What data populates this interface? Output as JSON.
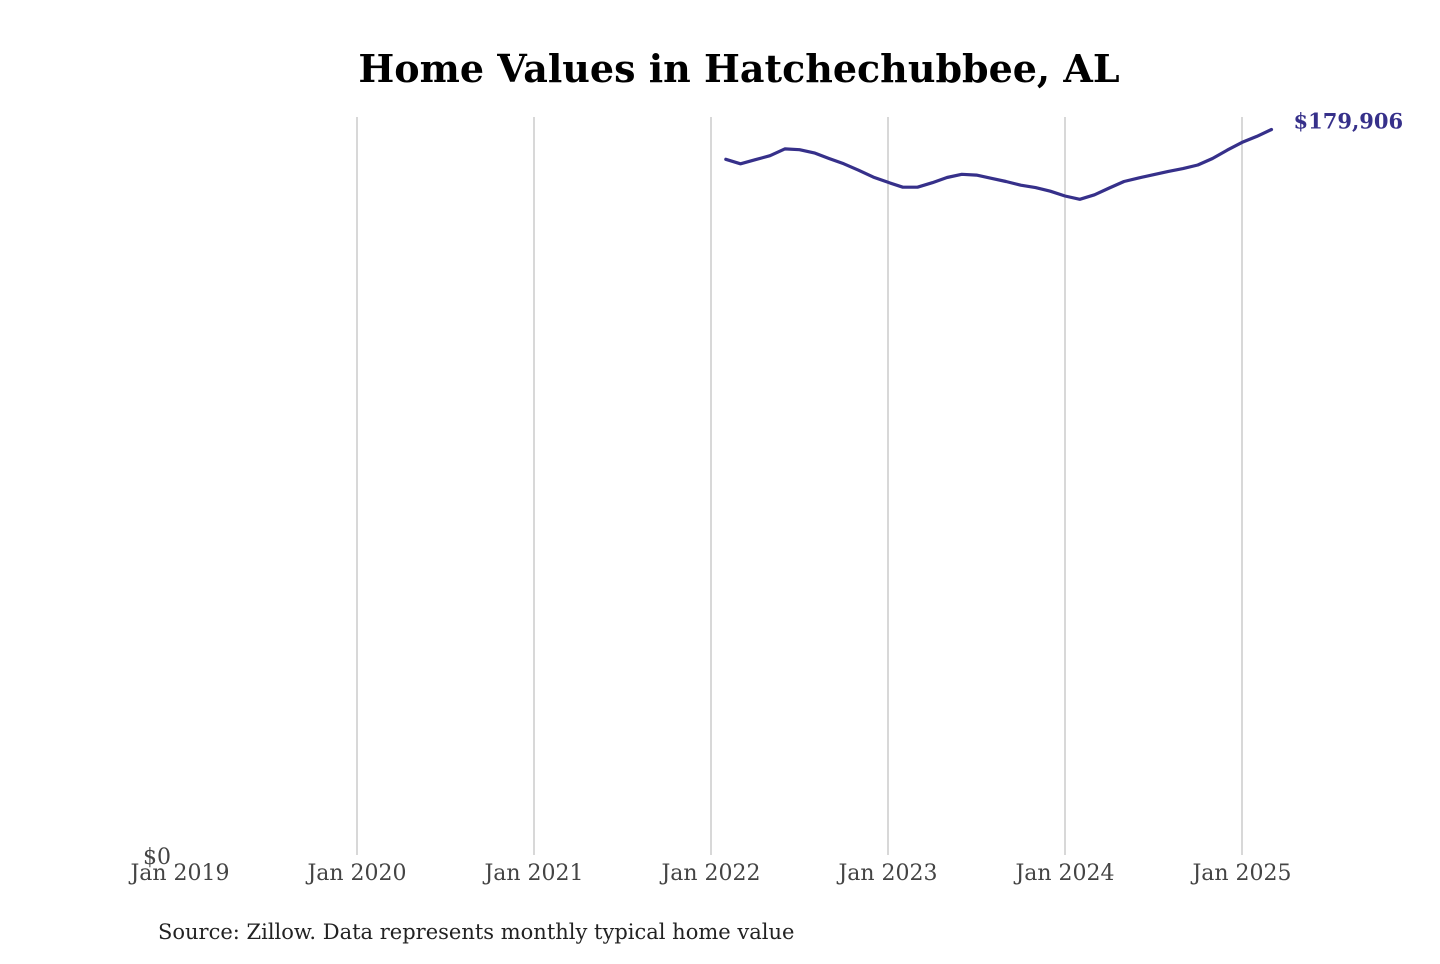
{
  "chart_data": {
    "type": "line",
    "title": "Home Values in Hatchechubbee, AL",
    "xlabel": "",
    "ylabel": "",
    "x_ticks": [
      "Jan 2019",
      "Jan 2020",
      "Jan 2021",
      "Jan 2022",
      "Jan 2023",
      "Jan 2024",
      "Jan 2025"
    ],
    "y_ticks": [
      "$0"
    ],
    "xlim": [
      "2019-01",
      "2025-06"
    ],
    "ylim": [
      0,
      183000
    ],
    "grid": "vertical",
    "series": [
      {
        "color": "#36308a",
        "x": [
          "2022-02",
          "2022-03",
          "2022-04",
          "2022-05",
          "2022-06",
          "2022-07",
          "2022-08",
          "2022-09",
          "2022-10",
          "2022-11",
          "2022-12",
          "2023-01",
          "2023-02",
          "2023-03",
          "2023-04",
          "2023-05",
          "2023-06",
          "2023-07",
          "2023-08",
          "2023-09",
          "2023-10",
          "2023-11",
          "2023-12",
          "2024-01",
          "2024-02",
          "2024-03",
          "2024-04",
          "2024-05",
          "2024-06",
          "2024-07",
          "2024-08",
          "2024-09",
          "2024-10",
          "2024-11",
          "2024-12",
          "2025-01",
          "2025-02",
          "2025-03"
        ],
        "y": [
          172500,
          171400,
          172400,
          173400,
          175100,
          174900,
          174100,
          172700,
          171400,
          169800,
          168100,
          166800,
          165600,
          165600,
          166700,
          168000,
          168800,
          168600,
          167800,
          167000,
          166100,
          165500,
          164600,
          163400,
          162600,
          163700,
          165400,
          167000,
          167900,
          168700,
          169500,
          170200,
          171100,
          172700,
          174800,
          176700,
          178200,
          179906
        ]
      }
    ],
    "end_label": "$179,906"
  },
  "footer": {
    "source": "Source: Zillow. Data represents monthly typical home value"
  }
}
